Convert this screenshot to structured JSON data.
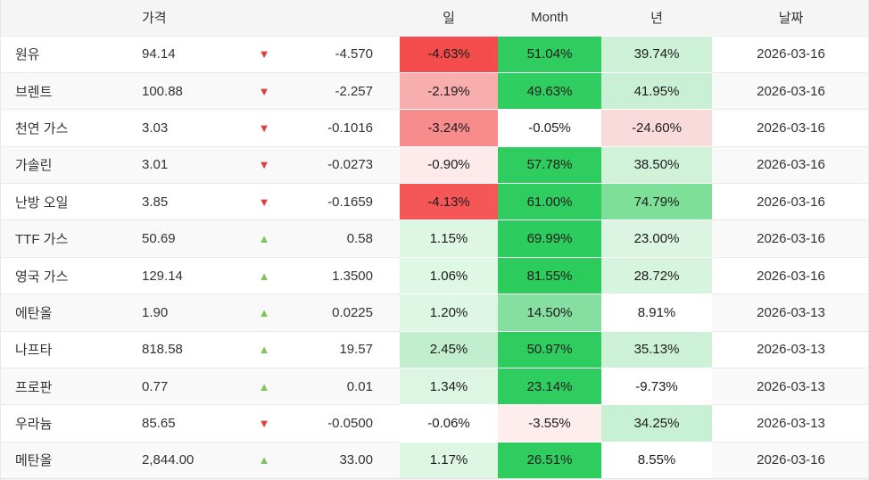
{
  "icons": {
    "up": "▲",
    "down": "▼"
  },
  "colors": {
    "up_arrow": "#7fc45e",
    "down_arrow": "#e23c3c",
    "strong_green": "#2fcd60",
    "strong_red": "#f44c4c",
    "header_bg": "#f5f5f5",
    "alt_row_bg": "#f9f9f9"
  },
  "table": {
    "headers": {
      "name": "",
      "price": "가격",
      "arrow": "",
      "change": "",
      "day": "일",
      "month": "Month",
      "year": "년",
      "date": "날짜"
    },
    "rows": [
      {
        "name": "원유",
        "price": "94.14",
        "direction": "down",
        "change": "-4.570",
        "day": {
          "text": "-4.63%",
          "bg": "#f44c4c"
        },
        "month": {
          "text": "51.04%",
          "bg": "#2fcd60"
        },
        "year": {
          "text": "39.74%",
          "bg": "#cdf1d7"
        },
        "date": "2026-03-16"
      },
      {
        "name": "브렌트",
        "price": "100.88",
        "direction": "down",
        "change": "-2.257",
        "day": {
          "text": "-2.19%",
          "bg": "#f9aeae"
        },
        "month": {
          "text": "49.63%",
          "bg": "#30ce61"
        },
        "year": {
          "text": "41.95%",
          "bg": "#c9f0d4"
        },
        "date": "2026-03-16"
      },
      {
        "name": "천연 가스",
        "price": "3.03",
        "direction": "down",
        "change": "-0.1016",
        "day": {
          "text": "-3.24%",
          "bg": "#f88b8b"
        },
        "month": {
          "text": "-0.05%",
          "bg": "#ffffff"
        },
        "year": {
          "text": "-24.60%",
          "bg": "#fadbdb"
        },
        "date": "2026-03-16"
      },
      {
        "name": "가솔린",
        "price": "3.01",
        "direction": "down",
        "change": "-0.0273",
        "day": {
          "text": "-0.90%",
          "bg": "#fdebeb"
        },
        "month": {
          "text": "57.78%",
          "bg": "#2fcd60"
        },
        "year": {
          "text": "38.50%",
          "bg": "#cff2d9"
        },
        "date": "2026-03-16"
      },
      {
        "name": "난방 오일",
        "price": "3.85",
        "direction": "down",
        "change": "-0.1659",
        "day": {
          "text": "-4.13%",
          "bg": "#f55656"
        },
        "month": {
          "text": "61.00%",
          "bg": "#2fcd60"
        },
        "year": {
          "text": "74.79%",
          "bg": "#7edf98"
        },
        "date": "2026-03-16"
      },
      {
        "name": "TTF 가스",
        "price": "50.69",
        "direction": "up",
        "change": "0.58",
        "day": {
          "text": "1.15%",
          "bg": "#def6e4"
        },
        "month": {
          "text": "69.99%",
          "bg": "#2dcc5e"
        },
        "year": {
          "text": "23.00%",
          "bg": "#dbf5e2"
        },
        "date": "2026-03-16"
      },
      {
        "name": "영국 가스",
        "price": "129.14",
        "direction": "up",
        "change": "1.3500",
        "day": {
          "text": "1.06%",
          "bg": "#dff7e5"
        },
        "month": {
          "text": "81.55%",
          "bg": "#2bcb5c"
        },
        "year": {
          "text": "28.72%",
          "bg": "#d6f4de"
        },
        "date": "2026-03-16"
      },
      {
        "name": "에탄올",
        "price": "1.90",
        "direction": "up",
        "change": "0.0225",
        "day": {
          "text": "1.20%",
          "bg": "#def6e4"
        },
        "month": {
          "text": "14.50%",
          "bg": "#85dfa0"
        },
        "year": {
          "text": "8.91%",
          "bg": "#ffffff"
        },
        "date": "2026-03-13"
      },
      {
        "name": "나프타",
        "price": "818.58",
        "direction": "up",
        "change": "19.57",
        "day": {
          "text": "2.45%",
          "bg": "#c2eecd"
        },
        "month": {
          "text": "50.97%",
          "bg": "#2fcd60"
        },
        "year": {
          "text": "35.13%",
          "bg": "#ccf1d6"
        },
        "date": "2026-03-13"
      },
      {
        "name": "프로판",
        "price": "0.77",
        "direction": "up",
        "change": "0.01",
        "day": {
          "text": "1.34%",
          "bg": "#ddf6e3"
        },
        "month": {
          "text": "23.14%",
          "bg": "#2fcd60"
        },
        "year": {
          "text": "-9.73%",
          "bg": "#ffffff"
        },
        "date": "2026-03-13"
      },
      {
        "name": "우라늄",
        "price": "85.65",
        "direction": "down",
        "change": "-0.0500",
        "day": {
          "text": "-0.06%",
          "bg": "#ffffff"
        },
        "month": {
          "text": "-3.55%",
          "bg": "#fdeded"
        },
        "year": {
          "text": "34.25%",
          "bg": "#c8f0d2"
        },
        "date": "2026-03-13"
      },
      {
        "name": "메탄올",
        "price": "2,844.00",
        "direction": "up",
        "change": "33.00",
        "day": {
          "text": "1.17%",
          "bg": "#def6e4"
        },
        "month": {
          "text": "26.51%",
          "bg": "#2fcd60"
        },
        "year": {
          "text": "8.55%",
          "bg": "#ffffff"
        },
        "date": "2026-03-16"
      }
    ]
  }
}
